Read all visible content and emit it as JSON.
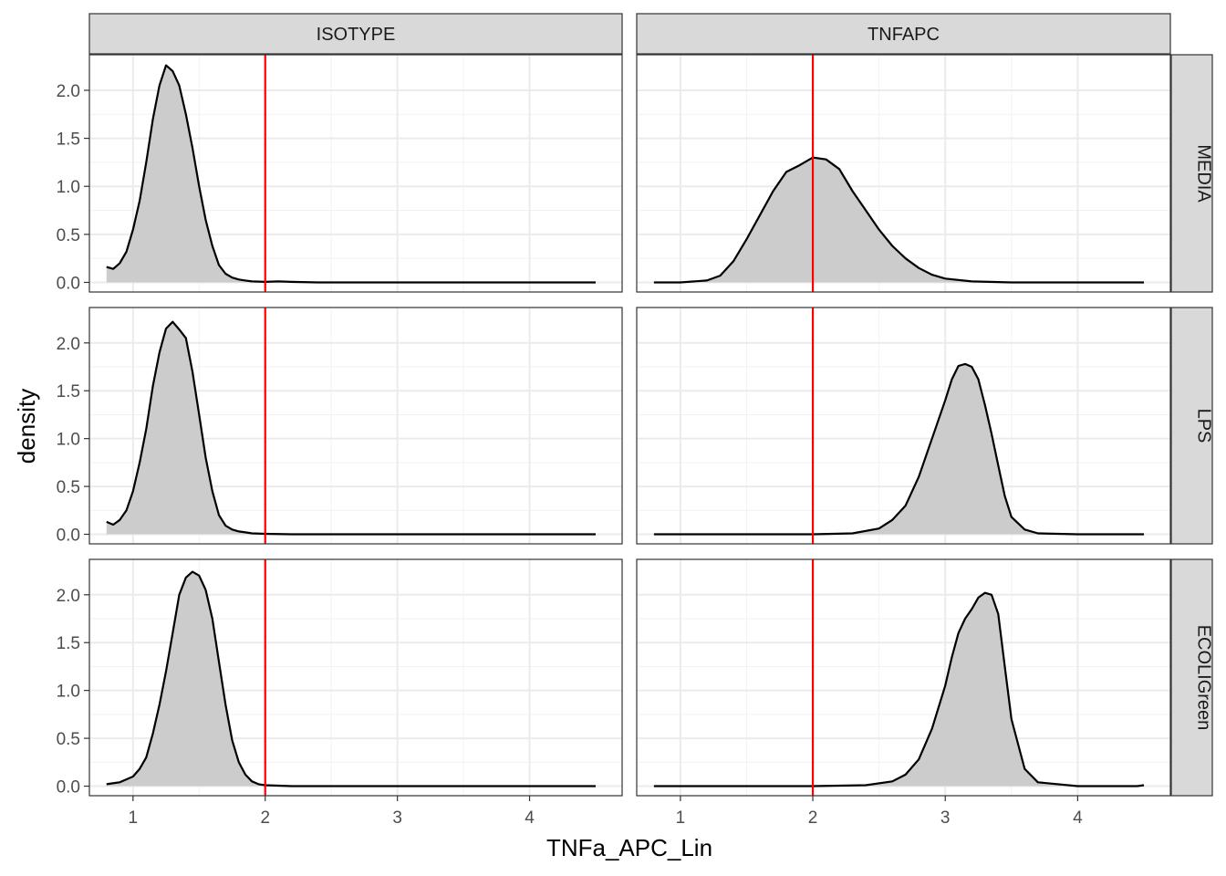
{
  "chart_data": {
    "type": "area",
    "chart_kind": "faceted density plot",
    "xlabel": "TNFa_APC_Lin",
    "ylabel": "density",
    "x_ticks": [
      1,
      2,
      3,
      4
    ],
    "y_ticks": [
      0.0,
      0.5,
      1.0,
      1.5,
      2.0
    ],
    "y_tick_labels": [
      "0.0",
      "0.5",
      "1.0",
      "1.5",
      "2.0"
    ],
    "xlim": [
      0.67,
      4.7
    ],
    "ylim": [
      -0.1,
      2.37
    ],
    "facet_columns": [
      "ISOTYPE",
      "TNFAPC"
    ],
    "facet_rows": [
      "MEDIA",
      "LPS",
      "ECOLIGreen"
    ],
    "reference_line": {
      "x": 2,
      "color": "#ff0000"
    },
    "fill_color": "#cccccc",
    "line_color": "#000000",
    "grid": true,
    "panels": [
      {
        "column": "ISOTYPE",
        "row": "MEDIA",
        "x": [
          0.8,
          0.85,
          0.9,
          0.95,
          1.0,
          1.05,
          1.1,
          1.15,
          1.2,
          1.25,
          1.3,
          1.35,
          1.4,
          1.45,
          1.5,
          1.55,
          1.6,
          1.65,
          1.7,
          1.75,
          1.8,
          1.85,
          1.9,
          2.0,
          2.1,
          2.2,
          2.4,
          3.0,
          4.0,
          4.5
        ],
        "y": [
          0.16,
          0.14,
          0.2,
          0.32,
          0.55,
          0.85,
          1.25,
          1.7,
          2.05,
          2.26,
          2.2,
          2.05,
          1.75,
          1.4,
          1.0,
          0.65,
          0.38,
          0.18,
          0.09,
          0.05,
          0.03,
          0.02,
          0.01,
          0.005,
          0.01,
          0.005,
          0.0,
          0.0,
          0.0,
          0.0
        ]
      },
      {
        "column": "TNFAPC",
        "row": "MEDIA",
        "x": [
          0.8,
          1.0,
          1.2,
          1.3,
          1.4,
          1.5,
          1.6,
          1.7,
          1.8,
          1.9,
          2.0,
          2.1,
          2.2,
          2.3,
          2.4,
          2.5,
          2.6,
          2.7,
          2.8,
          2.9,
          3.0,
          3.2,
          3.5,
          4.0,
          4.5
        ],
        "y": [
          0.0,
          0.0,
          0.02,
          0.07,
          0.22,
          0.45,
          0.7,
          0.95,
          1.15,
          1.22,
          1.3,
          1.28,
          1.18,
          0.95,
          0.75,
          0.55,
          0.38,
          0.25,
          0.15,
          0.08,
          0.04,
          0.01,
          0.0,
          0.0,
          0.0
        ]
      },
      {
        "column": "ISOTYPE",
        "row": "LPS",
        "x": [
          0.8,
          0.85,
          0.9,
          0.95,
          1.0,
          1.05,
          1.1,
          1.15,
          1.2,
          1.25,
          1.3,
          1.35,
          1.4,
          1.45,
          1.5,
          1.55,
          1.6,
          1.65,
          1.7,
          1.75,
          1.8,
          1.85,
          1.9,
          2.0,
          2.2,
          3.0,
          4.0,
          4.5
        ],
        "y": [
          0.13,
          0.1,
          0.15,
          0.25,
          0.45,
          0.75,
          1.1,
          1.55,
          1.9,
          2.15,
          2.22,
          2.14,
          2.05,
          1.7,
          1.25,
          0.8,
          0.45,
          0.2,
          0.09,
          0.05,
          0.03,
          0.02,
          0.01,
          0.005,
          0.0,
          0.0,
          0.0,
          0.0
        ]
      },
      {
        "column": "TNFAPC",
        "row": "LPS",
        "x": [
          0.8,
          1.5,
          2.0,
          2.3,
          2.5,
          2.6,
          2.7,
          2.8,
          2.9,
          3.0,
          3.05,
          3.1,
          3.15,
          3.2,
          3.25,
          3.3,
          3.35,
          3.4,
          3.45,
          3.5,
          3.6,
          3.7,
          4.0,
          4.5
        ],
        "y": [
          0.0,
          0.0,
          0.0,
          0.01,
          0.06,
          0.15,
          0.3,
          0.6,
          1.0,
          1.4,
          1.62,
          1.76,
          1.78,
          1.75,
          1.62,
          1.35,
          1.05,
          0.72,
          0.4,
          0.18,
          0.05,
          0.01,
          0.0,
          0.0
        ]
      },
      {
        "column": "ISOTYPE",
        "row": "ECOLIGreen",
        "x": [
          0.8,
          0.9,
          1.0,
          1.05,
          1.1,
          1.15,
          1.2,
          1.25,
          1.3,
          1.35,
          1.4,
          1.45,
          1.5,
          1.55,
          1.6,
          1.65,
          1.7,
          1.75,
          1.8,
          1.85,
          1.9,
          1.95,
          2.0,
          2.2,
          3.0,
          4.0,
          4.5
        ],
        "y": [
          0.02,
          0.04,
          0.1,
          0.18,
          0.3,
          0.55,
          0.85,
          1.2,
          1.6,
          2.0,
          2.18,
          2.24,
          2.2,
          2.05,
          1.75,
          1.3,
          0.85,
          0.48,
          0.25,
          0.12,
          0.05,
          0.02,
          0.01,
          0.0,
          0.0,
          0.0,
          0.0
        ]
      },
      {
        "column": "TNFAPC",
        "row": "ECOLIGreen",
        "x": [
          0.8,
          1.5,
          2.0,
          2.4,
          2.6,
          2.7,
          2.8,
          2.9,
          3.0,
          3.05,
          3.1,
          3.15,
          3.2,
          3.25,
          3.3,
          3.35,
          3.4,
          3.45,
          3.5,
          3.6,
          3.7,
          4.0,
          4.45,
          4.5
        ],
        "y": [
          0.0,
          0.0,
          0.0,
          0.01,
          0.05,
          0.12,
          0.28,
          0.6,
          1.05,
          1.35,
          1.6,
          1.75,
          1.85,
          1.97,
          2.02,
          2.0,
          1.8,
          1.25,
          0.7,
          0.18,
          0.04,
          0.0,
          0.0,
          0.01
        ]
      }
    ]
  }
}
